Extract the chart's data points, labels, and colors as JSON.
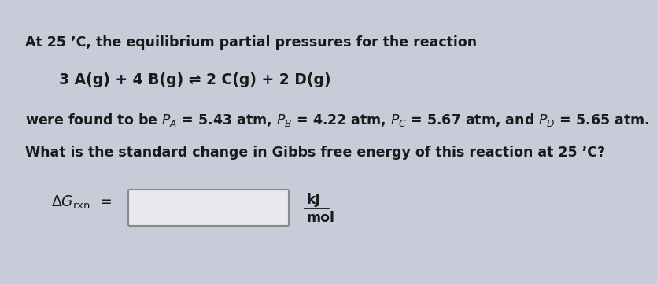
{
  "background_color": "#c8ccd8",
  "text_color": "#1a1a1a",
  "line1": "At 25 ’C, the equilibrium partial pressures for the reaction",
  "line2": "3 A(g) + 4 B(g) ⇌ 2 C(g) + 2 D(g)",
  "line3": "were found to be $P_A$ = 5.43 atm, $P_B$ = 4.22 atm, $P_C$ = 5.67 atm, and $P_D$ = 5.65 atm.",
  "line4": "What is the standard change in Gibbs free energy of this reaction at 25 ’C?",
  "delta_g_label": "$\\Delta G_{\\mathrm{rxn}}$  =",
  "input_box_color": "#e8e8ec",
  "input_box_edge": "#888888",
  "units_kJ": "kJ",
  "units_mol": "mol",
  "fontsize_main": 12.5,
  "fontsize_equation": 13.5,
  "fontsize_units": 12.5,
  "fontsize_delg": 13.5
}
